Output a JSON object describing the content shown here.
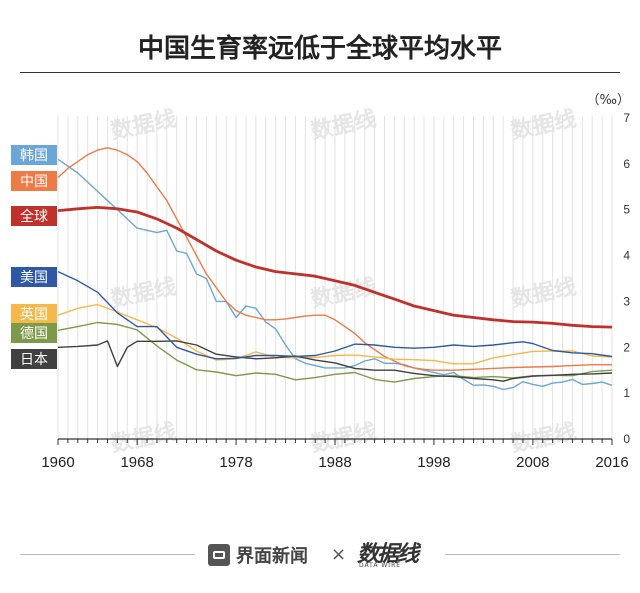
{
  "title": "中国生育率远低于全球平均水平",
  "footer": {
    "brand1": "界面新闻",
    "times": "×",
    "brand2": "数据线",
    "brand2_sub": "DATA WIRE"
  },
  "watermark_text": "数据线",
  "chart_data": {
    "type": "line",
    "title": "中国生育率远低于全球平均水平",
    "unit": "（‰）",
    "xlim": [
      1960,
      2016
    ],
    "ylim": [
      0,
      7
    ],
    "x_ticks": [
      "1960",
      "1968",
      "1978",
      "1988",
      "1998",
      "2008",
      "2016"
    ],
    "y_ticks": [
      "0",
      "1",
      "2",
      "3",
      "4",
      "5",
      "6",
      "7"
    ],
    "grid": true,
    "colors": {
      "韩国": "#6aa6d8",
      "中国": "#ee7a46",
      "全球": "#c0312b",
      "美国": "#2e58a6",
      "英国": "#f5b84a",
      "德国": "#7d9a4a",
      "日本": "#404040"
    },
    "series": [
      {
        "name": "韩国",
        "points": [
          [
            1960,
            6.1
          ],
          [
            1962,
            5.8
          ],
          [
            1964,
            5.4
          ],
          [
            1966,
            5.0
          ],
          [
            1968,
            4.6
          ],
          [
            1970,
            4.5
          ],
          [
            1971,
            4.55
          ],
          [
            1972,
            4.1
          ],
          [
            1973,
            4.05
          ],
          [
            1974,
            3.6
          ],
          [
            1975,
            3.5
          ],
          [
            1976,
            3.0
          ],
          [
            1977,
            3.0
          ],
          [
            1978,
            2.65
          ],
          [
            1979,
            2.9
          ],
          [
            1980,
            2.85
          ],
          [
            1981,
            2.55
          ],
          [
            1982,
            2.4
          ],
          [
            1983,
            2.05
          ],
          [
            1984,
            1.75
          ],
          [
            1985,
            1.65
          ],
          [
            1986,
            1.6
          ],
          [
            1987,
            1.55
          ],
          [
            1988,
            1.55
          ],
          [
            1989,
            1.55
          ],
          [
            1990,
            1.6
          ],
          [
            1991,
            1.7
          ],
          [
            1992,
            1.75
          ],
          [
            1993,
            1.65
          ],
          [
            1994,
            1.65
          ],
          [
            1995,
            1.62
          ],
          [
            1996,
            1.55
          ],
          [
            1997,
            1.5
          ],
          [
            1998,
            1.45
          ],
          [
            1999,
            1.4
          ],
          [
            2000,
            1.45
          ],
          [
            2001,
            1.3
          ],
          [
            2002,
            1.17
          ],
          [
            2003,
            1.18
          ],
          [
            2004,
            1.15
          ],
          [
            2005,
            1.08
          ],
          [
            2006,
            1.12
          ],
          [
            2007,
            1.25
          ],
          [
            2008,
            1.19
          ],
          [
            2009,
            1.15
          ],
          [
            2010,
            1.22
          ],
          [
            2011,
            1.24
          ],
          [
            2012,
            1.3
          ],
          [
            2013,
            1.19
          ],
          [
            2014,
            1.21
          ],
          [
            2015,
            1.24
          ],
          [
            2016,
            1.17
          ]
        ]
      },
      {
        "name": "中国",
        "points": [
          [
            1960,
            5.7
          ],
          [
            1961,
            5.9
          ],
          [
            1962,
            6.05
          ],
          [
            1963,
            6.2
          ],
          [
            1964,
            6.3
          ],
          [
            1965,
            6.35
          ],
          [
            1966,
            6.3
          ],
          [
            1967,
            6.2
          ],
          [
            1968,
            6.05
          ],
          [
            1969,
            5.8
          ],
          [
            1970,
            5.5
          ],
          [
            1971,
            5.2
          ],
          [
            1972,
            4.8
          ],
          [
            1973,
            4.4
          ],
          [
            1974,
            4.0
          ],
          [
            1975,
            3.6
          ],
          [
            1976,
            3.3
          ],
          [
            1977,
            3.0
          ],
          [
            1978,
            2.8
          ],
          [
            1979,
            2.7
          ],
          [
            1980,
            2.65
          ],
          [
            1981,
            2.6
          ],
          [
            1982,
            2.6
          ],
          [
            1983,
            2.62
          ],
          [
            1984,
            2.65
          ],
          [
            1985,
            2.68
          ],
          [
            1986,
            2.7
          ],
          [
            1987,
            2.7
          ],
          [
            1988,
            2.6
          ],
          [
            1989,
            2.45
          ],
          [
            1990,
            2.3
          ],
          [
            1991,
            2.1
          ],
          [
            1992,
            1.95
          ],
          [
            1993,
            1.8
          ],
          [
            1994,
            1.7
          ],
          [
            1995,
            1.6
          ],
          [
            1996,
            1.55
          ],
          [
            1997,
            1.52
          ],
          [
            1998,
            1.5
          ],
          [
            1999,
            1.5
          ],
          [
            2000,
            1.5
          ],
          [
            2002,
            1.52
          ],
          [
            2004,
            1.54
          ],
          [
            2006,
            1.56
          ],
          [
            2008,
            1.57
          ],
          [
            2010,
            1.58
          ],
          [
            2012,
            1.6
          ],
          [
            2014,
            1.62
          ],
          [
            2016,
            1.62
          ]
        ]
      },
      {
        "name": "全球",
        "points": [
          [
            1960,
            4.98
          ],
          [
            1962,
            5.02
          ],
          [
            1964,
            5.05
          ],
          [
            1966,
            5.02
          ],
          [
            1968,
            4.95
          ],
          [
            1970,
            4.8
          ],
          [
            1972,
            4.6
          ],
          [
            1974,
            4.35
          ],
          [
            1976,
            4.1
          ],
          [
            1978,
            3.9
          ],
          [
            1980,
            3.75
          ],
          [
            1982,
            3.65
          ],
          [
            1984,
            3.6
          ],
          [
            1986,
            3.55
          ],
          [
            1988,
            3.45
          ],
          [
            1990,
            3.35
          ],
          [
            1992,
            3.2
          ],
          [
            1994,
            3.05
          ],
          [
            1996,
            2.9
          ],
          [
            1998,
            2.8
          ],
          [
            2000,
            2.7
          ],
          [
            2002,
            2.65
          ],
          [
            2004,
            2.6
          ],
          [
            2006,
            2.56
          ],
          [
            2008,
            2.55
          ],
          [
            2010,
            2.52
          ],
          [
            2012,
            2.48
          ],
          [
            2014,
            2.45
          ],
          [
            2016,
            2.44
          ]
        ]
      },
      {
        "name": "美国",
        "points": [
          [
            1960,
            3.65
          ],
          [
            1962,
            3.45
          ],
          [
            1964,
            3.2
          ],
          [
            1966,
            2.75
          ],
          [
            1968,
            2.45
          ],
          [
            1970,
            2.45
          ],
          [
            1972,
            2.0
          ],
          [
            1974,
            1.85
          ],
          [
            1976,
            1.75
          ],
          [
            1978,
            1.76
          ],
          [
            1980,
            1.82
          ],
          [
            1982,
            1.82
          ],
          [
            1984,
            1.8
          ],
          [
            1986,
            1.82
          ],
          [
            1988,
            1.92
          ],
          [
            1990,
            2.07
          ],
          [
            1992,
            2.05
          ],
          [
            1994,
            2.0
          ],
          [
            1996,
            1.98
          ],
          [
            1998,
            2.0
          ],
          [
            2000,
            2.05
          ],
          [
            2002,
            2.02
          ],
          [
            2004,
            2.05
          ],
          [
            2006,
            2.1
          ],
          [
            2007,
            2.12
          ],
          [
            2008,
            2.08
          ],
          [
            2010,
            1.93
          ],
          [
            2012,
            1.88
          ],
          [
            2014,
            1.86
          ],
          [
            2016,
            1.8
          ]
        ]
      },
      {
        "name": "英国",
        "points": [
          [
            1960,
            2.7
          ],
          [
            1962,
            2.85
          ],
          [
            1964,
            2.93
          ],
          [
            1966,
            2.77
          ],
          [
            1968,
            2.6
          ],
          [
            1970,
            2.43
          ],
          [
            1972,
            2.2
          ],
          [
            1974,
            1.92
          ],
          [
            1976,
            1.72
          ],
          [
            1978,
            1.75
          ],
          [
            1980,
            1.9
          ],
          [
            1982,
            1.78
          ],
          [
            1984,
            1.77
          ],
          [
            1986,
            1.78
          ],
          [
            1988,
            1.82
          ],
          [
            1990,
            1.83
          ],
          [
            1992,
            1.79
          ],
          [
            1994,
            1.74
          ],
          [
            1996,
            1.73
          ],
          [
            1998,
            1.71
          ],
          [
            2000,
            1.64
          ],
          [
            2002,
            1.64
          ],
          [
            2004,
            1.77
          ],
          [
            2006,
            1.84
          ],
          [
            2008,
            1.91
          ],
          [
            2010,
            1.92
          ],
          [
            2012,
            1.92
          ],
          [
            2014,
            1.81
          ],
          [
            2016,
            1.79
          ]
        ]
      },
      {
        "name": "德国",
        "points": [
          [
            1960,
            2.37
          ],
          [
            1962,
            2.45
          ],
          [
            1964,
            2.54
          ],
          [
            1966,
            2.5
          ],
          [
            1968,
            2.38
          ],
          [
            1970,
            2.03
          ],
          [
            1972,
            1.72
          ],
          [
            1974,
            1.51
          ],
          [
            1976,
            1.46
          ],
          [
            1978,
            1.38
          ],
          [
            1980,
            1.44
          ],
          [
            1982,
            1.41
          ],
          [
            1984,
            1.29
          ],
          [
            1986,
            1.34
          ],
          [
            1988,
            1.41
          ],
          [
            1990,
            1.45
          ],
          [
            1992,
            1.3
          ],
          [
            1994,
            1.24
          ],
          [
            1996,
            1.32
          ],
          [
            1998,
            1.36
          ],
          [
            2000,
            1.38
          ],
          [
            2002,
            1.34
          ],
          [
            2004,
            1.36
          ],
          [
            2006,
            1.33
          ],
          [
            2008,
            1.38
          ],
          [
            2010,
            1.39
          ],
          [
            2012,
            1.38
          ],
          [
            2014,
            1.47
          ],
          [
            2016,
            1.5
          ]
        ]
      },
      {
        "name": "日本",
        "points": [
          [
            1960,
            2.0
          ],
          [
            1962,
            2.02
          ],
          [
            1964,
            2.05
          ],
          [
            1965,
            2.14
          ],
          [
            1966,
            1.58
          ],
          [
            1967,
            2.0
          ],
          [
            1968,
            2.13
          ],
          [
            1970,
            2.13
          ],
          [
            1972,
            2.14
          ],
          [
            1974,
            2.05
          ],
          [
            1976,
            1.85
          ],
          [
            1978,
            1.79
          ],
          [
            1980,
            1.75
          ],
          [
            1982,
            1.77
          ],
          [
            1984,
            1.81
          ],
          [
            1986,
            1.72
          ],
          [
            1988,
            1.66
          ],
          [
            1990,
            1.54
          ],
          [
            1992,
            1.5
          ],
          [
            1994,
            1.5
          ],
          [
            1996,
            1.43
          ],
          [
            1998,
            1.38
          ],
          [
            2000,
            1.36
          ],
          [
            2002,
            1.32
          ],
          [
            2004,
            1.29
          ],
          [
            2005,
            1.26
          ],
          [
            2006,
            1.32
          ],
          [
            2008,
            1.37
          ],
          [
            2010,
            1.39
          ],
          [
            2012,
            1.41
          ],
          [
            2014,
            1.42
          ],
          [
            2016,
            1.44
          ]
        ]
      }
    ]
  }
}
